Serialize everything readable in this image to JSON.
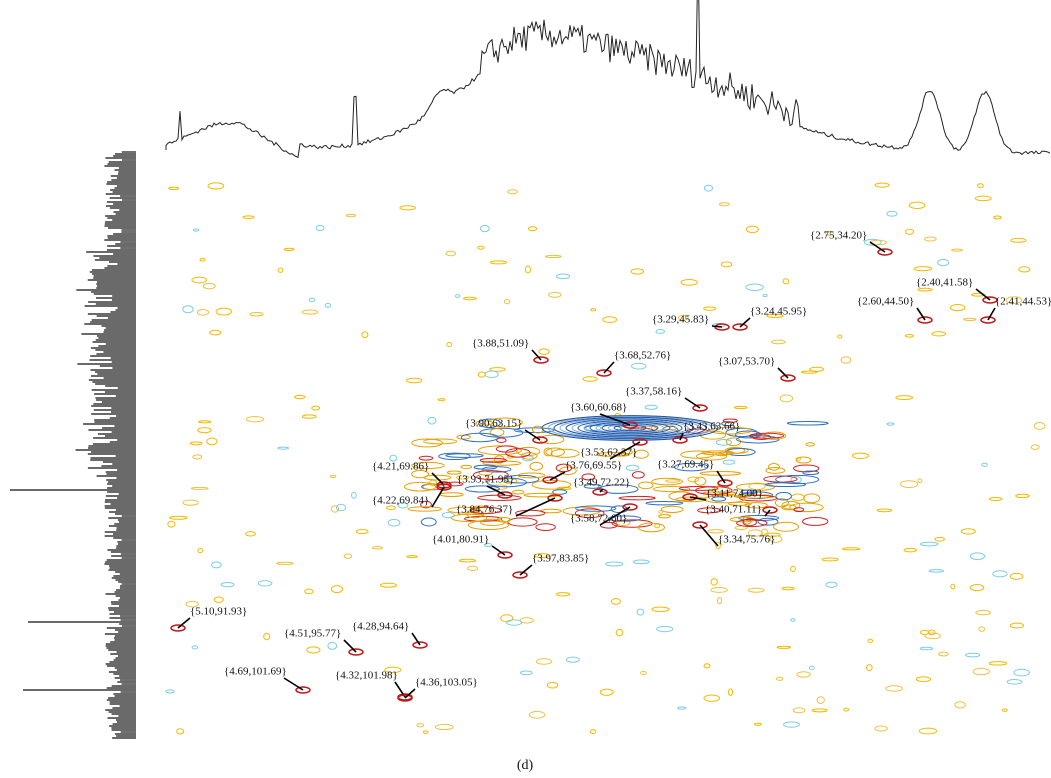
{
  "peaks": [
    {
      "label": "{2.75,34.20}"
    },
    {
      "label": "{2.40,41.58}"
    },
    {
      "label": "{2.60,44.50}"
    },
    {
      "label": "{2.41,44.53}"
    },
    {
      "label": "{3.29,45.83}"
    },
    {
      "label": "{3.24,45.95}"
    },
    {
      "label": "{3.88,51.09}"
    },
    {
      "label": "{3.68,52.76}"
    },
    {
      "label": "{3.07,53.70}"
    },
    {
      "label": "{3.37,58.16}"
    },
    {
      "label": "{3.60,60.68}"
    },
    {
      "label": "{3.90,63.15}"
    },
    {
      "label": "{3.43,63.66}"
    },
    {
      "label": "{3.53,62.37}"
    },
    {
      "label": "{4.21,69.86}"
    },
    {
      "label": "{3.76,69.55}"
    },
    {
      "label": "{3.27,69.45}"
    },
    {
      "label": "{3.93,71.95}"
    },
    {
      "label": "{3.49,72.22}"
    },
    {
      "label": "{4.22,69.84}"
    },
    {
      "label": "{3.11,74.00}"
    },
    {
      "label": "{3.40,71.11}"
    },
    {
      "label": "{3.84,76.37}"
    },
    {
      "label": "{3.58,72.60}"
    },
    {
      "label": "{3.34,75.76}"
    },
    {
      "label": "{4.01,80.91}"
    },
    {
      "label": "{3.97,83.85}"
    },
    {
      "label": "{5.10,91.93}"
    },
    {
      "label": "{4.51,95.77}"
    },
    {
      "label": "{4.28,94.64}"
    },
    {
      "label": "{4.69,101.69}"
    },
    {
      "label": "{4.32,101.98}"
    },
    {
      "label": "{4.36,103.05}"
    }
  ],
  "caption": "(d)"
}
